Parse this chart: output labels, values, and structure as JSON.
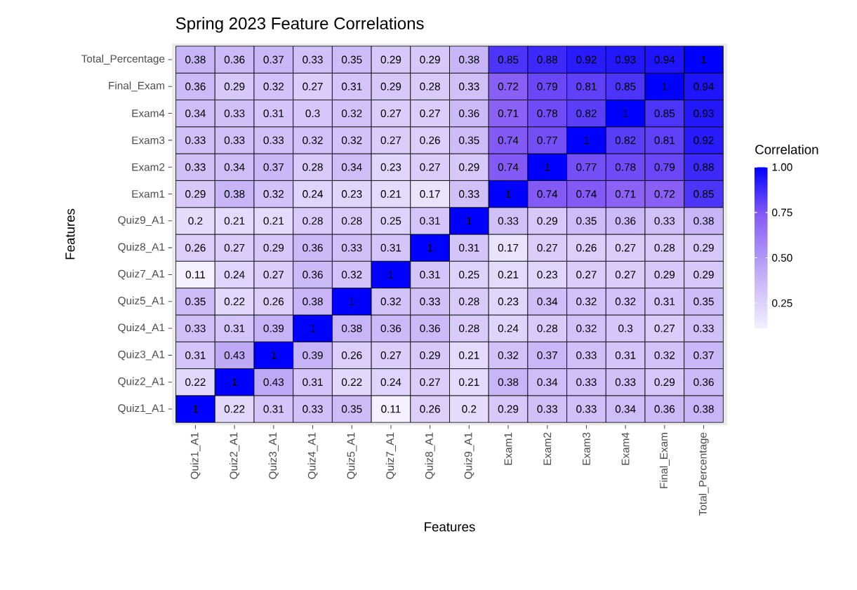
{
  "chart_data": {
    "type": "heatmap",
    "title": "Spring 2023 Feature Correlations",
    "xlabel": "Features",
    "ylabel": "Features",
    "clabel": "Correlation",
    "categories": [
      "Quiz1_A1",
      "Quiz2_A1",
      "Quiz3_A1",
      "Quiz4_A1",
      "Quiz5_A1",
      "Quiz7_A1",
      "Quiz8_A1",
      "Quiz9_A1",
      "Exam1",
      "Exam2",
      "Exam3",
      "Exam4",
      "Final_Exam",
      "Total_Percentage"
    ],
    "y_categories": [
      "Total_Percentage",
      "Final_Exam",
      "Exam4",
      "Exam3",
      "Exam2",
      "Exam1",
      "Quiz9_A1",
      "Quiz8_A1",
      "Quiz7_A1",
      "Quiz5_A1",
      "Quiz4_A1",
      "Quiz3_A1",
      "Quiz2_A1",
      "Quiz1_A1"
    ],
    "cells": [
      [
        0.38,
        0.36,
        0.37,
        0.33,
        0.35,
        0.29,
        0.29,
        0.38,
        0.85,
        0.88,
        0.92,
        0.93,
        0.94,
        1
      ],
      [
        0.36,
        0.29,
        0.32,
        0.27,
        0.31,
        0.29,
        0.28,
        0.33,
        0.72,
        0.79,
        0.81,
        0.85,
        1,
        0.94
      ],
      [
        0.34,
        0.33,
        0.31,
        0.3,
        0.32,
        0.27,
        0.27,
        0.36,
        0.71,
        0.78,
        0.82,
        1,
        0.85,
        0.93
      ],
      [
        0.33,
        0.33,
        0.33,
        0.32,
        0.32,
        0.27,
        0.26,
        0.35,
        0.74,
        0.77,
        1,
        0.82,
        0.81,
        0.92
      ],
      [
        0.33,
        0.34,
        0.37,
        0.28,
        0.34,
        0.23,
        0.27,
        0.29,
        0.74,
        1,
        0.77,
        0.78,
        0.79,
        0.88
      ],
      [
        0.29,
        0.38,
        0.32,
        0.24,
        0.23,
        0.21,
        0.17,
        0.33,
        1,
        0.74,
        0.74,
        0.71,
        0.72,
        0.85
      ],
      [
        0.2,
        0.21,
        0.21,
        0.28,
        0.28,
        0.25,
        0.31,
        1,
        0.33,
        0.29,
        0.35,
        0.36,
        0.33,
        0.38
      ],
      [
        0.26,
        0.27,
        0.29,
        0.36,
        0.33,
        0.31,
        1,
        0.31,
        0.17,
        0.27,
        0.26,
        0.27,
        0.28,
        0.29
      ],
      [
        0.11,
        0.24,
        0.27,
        0.36,
        0.32,
        1,
        0.31,
        0.25,
        0.21,
        0.23,
        0.27,
        0.27,
        0.29,
        0.29
      ],
      [
        0.35,
        0.22,
        0.26,
        0.38,
        1,
        0.32,
        0.33,
        0.28,
        0.23,
        0.34,
        0.32,
        0.32,
        0.31,
        0.35
      ],
      [
        0.33,
        0.31,
        0.39,
        1,
        0.38,
        0.36,
        0.36,
        0.28,
        0.24,
        0.28,
        0.32,
        0.3,
        0.27,
        0.33
      ],
      [
        0.31,
        0.43,
        1,
        0.39,
        0.26,
        0.27,
        0.29,
        0.21,
        0.32,
        0.37,
        0.33,
        0.31,
        0.32,
        0.37
      ],
      [
        0.22,
        1,
        0.43,
        0.31,
        0.22,
        0.24,
        0.27,
        0.21,
        0.38,
        0.34,
        0.33,
        0.33,
        0.29,
        0.36
      ],
      [
        1,
        0.22,
        0.31,
        0.33,
        0.35,
        0.11,
        0.26,
        0.2,
        0.29,
        0.33,
        0.33,
        0.34,
        0.36,
        0.38
      ]
    ],
    "data_labels": true,
    "clim": [
      0.11,
      1
    ],
    "cticks": [
      {
        "value": 0.25,
        "label": "0.25"
      },
      {
        "value": 0.5,
        "label": "0.50"
      },
      {
        "value": 0.75,
        "label": "0.75"
      },
      {
        "value": 1,
        "label": "1.00"
      }
    ]
  }
}
